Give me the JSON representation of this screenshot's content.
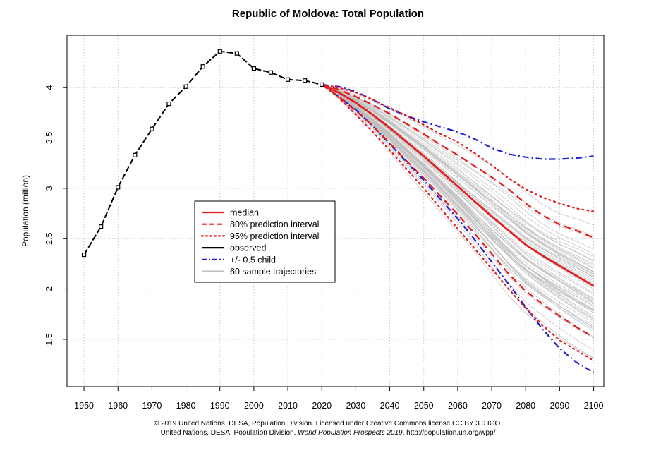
{
  "chart_data": {
    "type": "line",
    "title": "Republic of Moldova: Total Population",
    "xlabel": "",
    "ylabel": "Population (million)",
    "xlim": [
      1945,
      2103
    ],
    "ylim": [
      1.03,
      4.52
    ],
    "x_ticks": [
      1950,
      1960,
      1970,
      1980,
      1990,
      2000,
      2010,
      2020,
      2030,
      2040,
      2050,
      2060,
      2070,
      2080,
      2090,
      2100
    ],
    "y_ticks": [
      1.5,
      2,
      2.5,
      3,
      3.5,
      4
    ],
    "y_tick_labels": [
      "1.5",
      "2",
      "2.5",
      "3",
      "3.5",
      "4"
    ],
    "grid": true,
    "legend_position": "center-left",
    "legend": [
      {
        "label": "median",
        "color": "#e41a1c",
        "style": "solid"
      },
      {
        "label": "80% prediction interval",
        "color": "#e41a1c",
        "style": "dashed"
      },
      {
        "label": "95% prediction interval",
        "color": "#e41a1c",
        "style": "dotted"
      },
      {
        "label": "observed",
        "color": "#000000",
        "style": "solid"
      },
      {
        "label": "+/- 0.5 child",
        "color": "#1f1fd6",
        "style": "dashdot"
      },
      {
        "label": "60 sample trajectories",
        "color": "#c0c0c0",
        "style": "solid"
      }
    ],
    "observed": {
      "x": [
        1950,
        1955,
        1960,
        1965,
        1970,
        1975,
        1980,
        1985,
        1990,
        1995,
        2000,
        2005,
        2010,
        2015,
        2020
      ],
      "y": [
        2.34,
        2.62,
        3.01,
        3.33,
        3.59,
        3.84,
        4.01,
        4.21,
        4.36,
        4.34,
        4.19,
        4.15,
        4.08,
        4.07,
        4.03
      ]
    },
    "projection_x": [
      2020,
      2025,
      2030,
      2035,
      2040,
      2045,
      2050,
      2055,
      2060,
      2065,
      2070,
      2075,
      2080,
      2085,
      2090,
      2095,
      2100
    ],
    "median": [
      4.03,
      3.95,
      3.85,
      3.73,
      3.6,
      3.46,
      3.32,
      3.17,
      3.02,
      2.87,
      2.72,
      2.58,
      2.44,
      2.33,
      2.23,
      2.13,
      2.03
    ],
    "pi80_upper": [
      4.03,
      3.98,
      3.91,
      3.83,
      3.74,
      3.64,
      3.54,
      3.43,
      3.33,
      3.22,
      3.11,
      2.99,
      2.85,
      2.73,
      2.64,
      2.58,
      2.51
    ],
    "pi80_lower": [
      4.03,
      3.91,
      3.77,
      3.62,
      3.45,
      3.27,
      3.1,
      2.92,
      2.74,
      2.55,
      2.35,
      2.15,
      1.98,
      1.85,
      1.73,
      1.62,
      1.52
    ],
    "pi95_upper": [
      4.03,
      4.0,
      3.95,
      3.88,
      3.8,
      3.72,
      3.63,
      3.54,
      3.46,
      3.35,
      3.23,
      3.1,
      2.99,
      2.91,
      2.85,
      2.8,
      2.77
    ],
    "pi95_lower": [
      4.03,
      3.9,
      3.73,
      3.56,
      3.38,
      3.19,
      3.0,
      2.8,
      2.6,
      2.4,
      2.2,
      2.0,
      1.81,
      1.64,
      1.49,
      1.39,
      1.29
    ],
    "half_child_upper": [
      4.03,
      4.01,
      3.96,
      3.88,
      3.79,
      3.72,
      3.66,
      3.61,
      3.56,
      3.49,
      3.4,
      3.34,
      3.31,
      3.29,
      3.29,
      3.3,
      3.32
    ],
    "half_child_lower": [
      4.03,
      3.91,
      3.78,
      3.62,
      3.44,
      3.26,
      3.08,
      2.89,
      2.7,
      2.49,
      2.27,
      2.05,
      1.82,
      1.6,
      1.41,
      1.27,
      1.17
    ]
  },
  "credits": {
    "line1": "© 2019 United Nations, DESA, Population Division. Licensed under Creative Commons license CC BY 3.0 IGO.",
    "line2_prefix": "United Nations, DESA, Population Division. ",
    "line2_title": "World Population Prospects 2019",
    "line2_suffix": ". http://population.un.org/wpp/"
  }
}
